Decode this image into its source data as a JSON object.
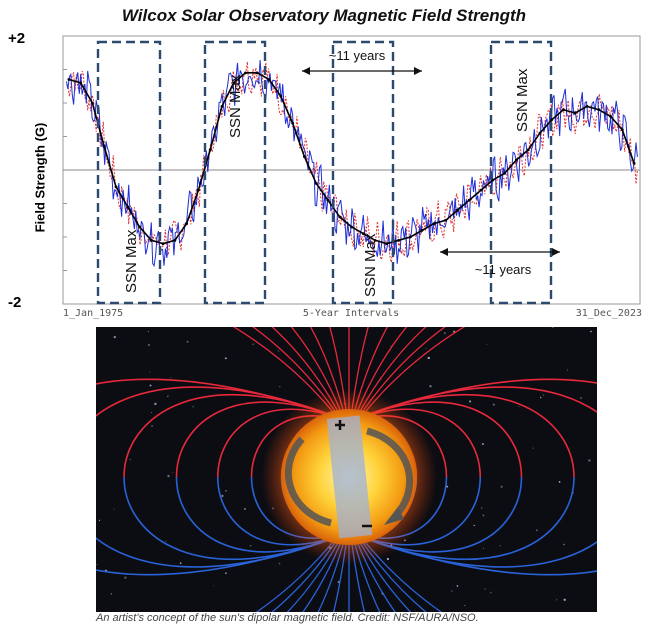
{
  "title": "Wilcox Solar Observatory  Magnetic  Field Strength",
  "caption": "An artist's concept of the sun's dipolar magnetic field. Credit: NSF/AURA/NSO.",
  "colors": {
    "north_series": "#1f2fd6",
    "south_series": "#e03030",
    "average": "#000000",
    "box": "#2b4a6e",
    "field_red": "#e8283c",
    "field_blue": "#2a62d8"
  },
  "chart_data": {
    "type": "line",
    "title": "Wilcox Solar Observatory  Magnetic  Field Strength",
    "ylabel": "Field Strength (G)",
    "xlabel": "5-Year Intervals",
    "ylim": [
      -2,
      2
    ],
    "xlim": [
      1975,
      2024
    ],
    "y_tick_labels": [
      "+2",
      "-2"
    ],
    "x_tick_labels": [
      "1_Jan_1975",
      "5-Year Intervals",
      "31_Dec_2023"
    ],
    "series": [
      {
        "name": "average",
        "x": [
          1975.5,
          1976.5,
          1977.5,
          1978.5,
          1979.5,
          1980.5,
          1981.5,
          1982.5,
          1983.5,
          1984.5,
          1985.5,
          1986.5,
          1987.5,
          1988.5,
          1989.5,
          1990.5,
          1991.5,
          1992.5,
          1993.5,
          1994.5,
          1995.5,
          1996.5,
          1997.5,
          1998.5,
          1999.5,
          2000.5,
          2001.5,
          2002.5,
          2003.5,
          2004.5,
          2005.5,
          2006.5,
          2007.5,
          2008.5,
          2009.5,
          2010.5,
          2011.5,
          2012.5,
          2013.5,
          2014.5,
          2015.5,
          2016.5,
          2017.5,
          2018.5,
          2019.5,
          2020.5,
          2021.5,
          2022.5,
          2023.5
        ],
        "values": [
          1.35,
          1.3,
          1.0,
          0.35,
          -0.25,
          -0.55,
          -0.85,
          -1.05,
          -1.1,
          -1.05,
          -0.8,
          -0.3,
          0.3,
          0.95,
          1.3,
          1.45,
          1.45,
          1.35,
          1.1,
          0.7,
          0.2,
          -0.2,
          -0.45,
          -0.7,
          -0.85,
          -0.95,
          -1.05,
          -1.1,
          -1.05,
          -1.0,
          -0.9,
          -0.8,
          -0.75,
          -0.6,
          -0.45,
          -0.3,
          -0.15,
          -0.05,
          0.15,
          0.3,
          0.55,
          0.75,
          0.9,
          0.85,
          0.95,
          0.9,
          0.8,
          0.6,
          0.1
        ]
      }
    ],
    "annotations": {
      "ssn_max": [
        "SSN Max",
        "SSN Max",
        "SSN Max",
        "SSN Max"
      ],
      "interval_top": "~11 years",
      "interval_bottom": "~11 years"
    }
  }
}
